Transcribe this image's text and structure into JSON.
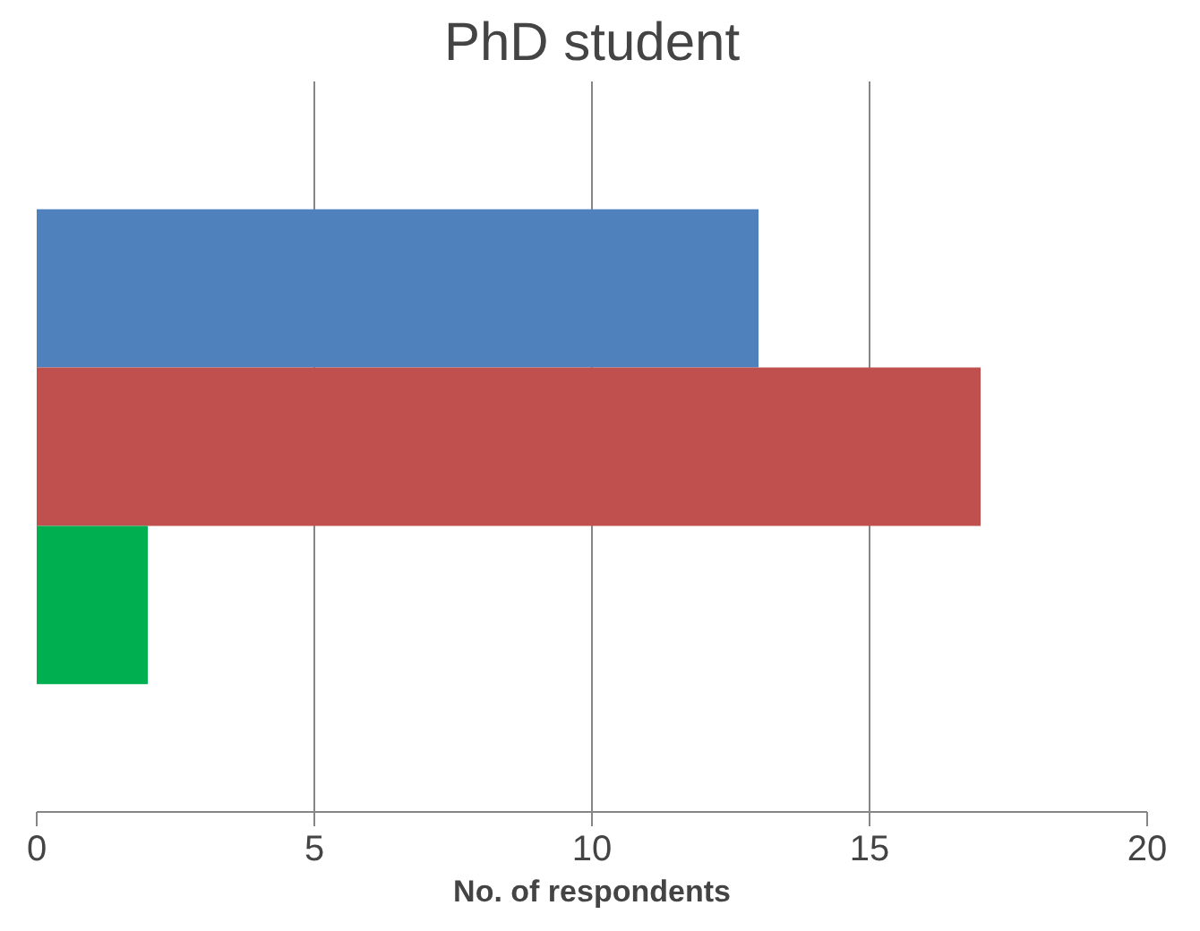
{
  "chart_data": {
    "type": "bar",
    "orientation": "horizontal",
    "title": "PhD student",
    "xlabel": "No. of respondents",
    "categories": [
      null
    ],
    "series": [
      {
        "color": "#4f81bd",
        "values": [
          13
        ]
      },
      {
        "color": "#c0504d",
        "values": [
          17
        ]
      },
      {
        "color": "#00b050",
        "values": [
          2
        ]
      }
    ],
    "xlim": [
      0,
      20
    ],
    "xticks": [
      0,
      5,
      10,
      15,
      20
    ],
    "grid": "x",
    "tick_labels": "x"
  }
}
